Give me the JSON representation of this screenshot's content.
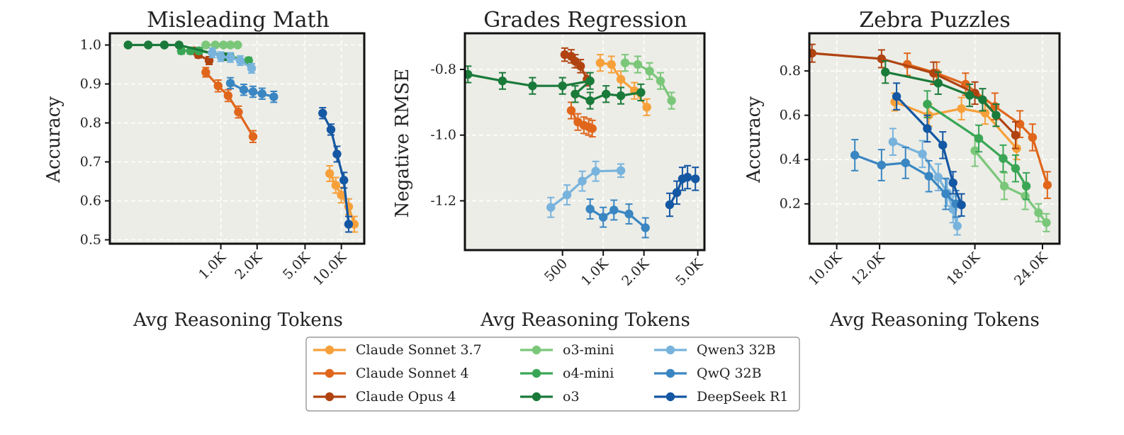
{
  "legend": [
    {
      "name": "Claude Sonnet 3.7",
      "color": "#f7a03a"
    },
    {
      "name": "Claude Sonnet 4",
      "color": "#e0661c"
    },
    {
      "name": "Claude Opus 4",
      "color": "#b04310"
    },
    {
      "name": "o3-mini",
      "color": "#7bc77a"
    },
    {
      "name": "o4-mini",
      "color": "#3aa655"
    },
    {
      "name": "o3",
      "color": "#1a7a3a"
    },
    {
      "name": "Qwen3 32B",
      "color": "#78b3dd"
    },
    {
      "name": "QwQ 32B",
      "color": "#3a86c2"
    },
    {
      "name": "DeepSeek R1",
      "color": "#1457a3"
    }
  ],
  "chart_data": [
    {
      "type": "line",
      "title": "Misleading Math",
      "xlabel": "Avg Reasoning Tokens",
      "ylabel": "Accuracy",
      "xscale": "log",
      "xlim": [
        120,
        15500
      ],
      "ylim": [
        0.49,
        1.03
      ],
      "xticks": [
        {
          "v": 1000,
          "l": "1.0K"
        },
        {
          "v": 2000,
          "l": "2.0K"
        },
        {
          "v": 5000,
          "l": "5.0K"
        },
        {
          "v": 10000,
          "l": "10.0K"
        }
      ],
      "yticks": [
        {
          "v": 0.5,
          "l": "0.5"
        },
        {
          "v": 0.6,
          "l": "0.6"
        },
        {
          "v": 0.7,
          "l": "0.7"
        },
        {
          "v": 0.8,
          "l": "0.8"
        },
        {
          "v": 0.9,
          "l": "0.9"
        },
        {
          "v": 1.0,
          "l": "1.0"
        }
      ],
      "grid": true,
      "series": [
        {
          "name": "Claude Sonnet 3.7",
          "points": [
            [
              8000,
              0.67,
              0.02
            ],
            [
              9000,
              0.64,
              0.02
            ],
            [
              10000,
              0.615,
              0.02
            ],
            [
              11500,
              0.585,
              0.02
            ],
            [
              12800,
              0.54,
              0.02
            ]
          ]
        },
        {
          "name": "Claude Sonnet 4",
          "points": [
            [
              750,
              0.93,
              0.012
            ],
            [
              950,
              0.895,
              0.015
            ],
            [
              1150,
              0.87,
              0.015
            ],
            [
              1400,
              0.828,
              0.015
            ],
            [
              1850,
              0.765,
              0.015
            ]
          ]
        },
        {
          "name": "Claude Opus 4",
          "points": [
            [
              600,
              0.985,
              0.008
            ],
            [
              650,
              0.975,
              0.008
            ],
            [
              800,
              0.96,
              0.01
            ]
          ]
        },
        {
          "name": "o3-mini",
          "points": [
            [
              750,
              1.0,
              0.004
            ],
            [
              900,
              1.0,
              0.004
            ],
            [
              1050,
              1.0,
              0.004
            ],
            [
              1200,
              1.0,
              0.004
            ],
            [
              1380,
              1.0,
              0.004
            ]
          ]
        },
        {
          "name": "o4-mini",
          "points": [
            [
              470,
              0.985,
              0.008
            ],
            [
              560,
              0.985,
              0.008
            ],
            [
              660,
              0.985,
              0.008
            ],
            [
              1200,
              0.97,
              0.008
            ],
            [
              1700,
              0.96,
              0.008
            ]
          ]
        },
        {
          "name": "o3",
          "points": [
            [
              170,
              1.0,
              0.004
            ],
            [
              250,
              1.0,
              0.004
            ],
            [
              340,
              1.0,
              0.004
            ],
            [
              450,
              1.0,
              0.004
            ],
            [
              1100,
              0.97,
              0.004
            ]
          ]
        },
        {
          "name": "Qwen3 32B",
          "points": [
            [
              850,
              0.98,
              0.012
            ],
            [
              1000,
              0.97,
              0.012
            ],
            [
              1200,
              0.968,
              0.012
            ],
            [
              1450,
              0.96,
              0.012
            ],
            [
              1800,
              0.94,
              0.012
            ]
          ]
        },
        {
          "name": "QwQ 32B",
          "points": [
            [
              1200,
              0.902,
              0.014
            ],
            [
              1550,
              0.885,
              0.014
            ],
            [
              1850,
              0.88,
              0.014
            ],
            [
              2200,
              0.875,
              0.014
            ],
            [
              2750,
              0.867,
              0.014
            ]
          ]
        },
        {
          "name": "DeepSeek R1",
          "points": [
            [
              7000,
              0.825,
              0.014
            ],
            [
              8200,
              0.783,
              0.014
            ],
            [
              9200,
              0.72,
              0.02
            ],
            [
              10500,
              0.653,
              0.02
            ],
            [
              11500,
              0.54,
              0.02
            ]
          ]
        }
      ]
    },
    {
      "type": "line",
      "title": "Grades Regression",
      "xlabel": "Avg Reasoning Tokens",
      "ylabel": "Negative RMSE",
      "xscale": "log",
      "xlim": [
        95,
        5600
      ],
      "ylim": [
        -1.35,
        -0.69
      ],
      "xticks": [
        {
          "v": 500,
          "l": "500"
        },
        {
          "v": 1000,
          "l": "1.0K"
        },
        {
          "v": 2000,
          "l": "2.0K"
        },
        {
          "v": 5000,
          "l": "5.0K"
        }
      ],
      "yticks": [
        {
          "v": -1.2,
          "l": "-1.2"
        },
        {
          "v": -1.0,
          "l": "-1.0"
        },
        {
          "v": -0.8,
          "l": "-0.8"
        }
      ],
      "grid": true,
      "series": [
        {
          "name": "Claude Sonnet 3.7",
          "points": [
            [
              950,
              -0.78,
              0.025
            ],
            [
              1150,
              -0.785,
              0.025
            ],
            [
              1350,
              -0.83,
              0.025
            ],
            [
              1700,
              -0.865,
              0.025
            ],
            [
              2100,
              -0.915,
              0.025
            ]
          ]
        },
        {
          "name": "Claude Sonnet 4",
          "points": [
            [
              580,
              -0.925,
              0.025
            ],
            [
              650,
              -0.96,
              0.025
            ],
            [
              720,
              -0.97,
              0.025
            ],
            [
              780,
              -0.975,
              0.025
            ],
            [
              830,
              -0.98,
              0.025
            ]
          ]
        },
        {
          "name": "Claude Opus 4",
          "points": [
            [
              520,
              -0.755,
              0.02
            ],
            [
              580,
              -0.76,
              0.02
            ],
            [
              620,
              -0.775,
              0.02
            ],
            [
              680,
              -0.79,
              0.02
            ],
            [
              760,
              -0.83,
              0.02
            ]
          ]
        },
        {
          "name": "o3-mini",
          "points": [
            [
              1450,
              -0.78,
              0.025
            ],
            [
              1800,
              -0.785,
              0.025
            ],
            [
              2200,
              -0.805,
              0.025
            ],
            [
              2650,
              -0.835,
              0.025
            ],
            [
              3200,
              -0.895,
              0.025
            ]
          ]
        },
        {
          "name": "o4-mini",
          "points": []
        },
        {
          "name": "o3",
          "points": [
            [
              100,
              -0.815,
              0.025
            ],
            [
              180,
              -0.835,
              0.025
            ],
            [
              300,
              -0.85,
              0.025
            ],
            [
              500,
              -0.85,
              0.025
            ],
            [
              800,
              -0.835,
              0.025
            ],
            [
              620,
              -0.875,
              0.025
            ],
            [
              800,
              -0.895,
              0.025
            ],
            [
              1050,
              -0.875,
              0.025
            ],
            [
              1350,
              -0.88,
              0.025
            ],
            [
              1900,
              -0.87,
              0.025
            ]
          ]
        },
        {
          "name": "Qwen3 32B",
          "points": [
            [
              410,
              -1.22,
              0.03
            ],
            [
              540,
              -1.182,
              0.03
            ],
            [
              700,
              -1.14,
              0.03
            ],
            [
              880,
              -1.11,
              0.03
            ],
            [
              1350,
              -1.108,
              0.02
            ]
          ]
        },
        {
          "name": "QwQ 32B",
          "points": [
            [
              800,
              -1.225,
              0.03
            ],
            [
              1000,
              -1.25,
              0.03
            ],
            [
              1200,
              -1.228,
              0.03
            ],
            [
              1550,
              -1.24,
              0.03
            ],
            [
              2050,
              -1.282,
              0.03
            ]
          ]
        },
        {
          "name": "DeepSeek R1",
          "points": [
            [
              3100,
              -1.212,
              0.035
            ],
            [
              3500,
              -1.175,
              0.035
            ],
            [
              3850,
              -1.133,
              0.035
            ],
            [
              4200,
              -1.128,
              0.035
            ],
            [
              4800,
              -1.133,
              0.035
            ]
          ]
        }
      ]
    },
    {
      "type": "line",
      "title": "Zebra Puzzles",
      "xlabel": "Avg Reasoning Tokens",
      "ylabel": "Accuracy",
      "xscale": "log",
      "xlim": [
        8900,
        25800
      ],
      "ylim": [
        0.02,
        0.97
      ],
      "xticks": [
        {
          "v": 10000,
          "l": "10.0K"
        },
        {
          "v": 12000,
          "l": "12.0K"
        },
        {
          "v": 18000,
          "l": "18.0K"
        },
        {
          "v": 24000,
          "l": "24.0K"
        }
      ],
      "yticks": [
        {
          "v": 0.2,
          "l": "0.2"
        },
        {
          "v": 0.4,
          "l": "0.4"
        },
        {
          "v": 0.6,
          "l": "0.6"
        },
        {
          "v": 0.8,
          "l": "0.8"
        }
      ],
      "grid": true,
      "series": [
        {
          "name": "Claude Sonnet 3.7",
          "points": [
            [
              12800,
              0.66,
              0.04
            ],
            [
              14800,
              0.6,
              0.05
            ],
            [
              17000,
              0.63,
              0.05
            ],
            [
              18800,
              0.61,
              0.05
            ],
            [
              21500,
              0.45,
              0.05
            ]
          ]
        },
        {
          "name": "Claude Sonnet 4",
          "points": [
            [
              13500,
              0.83,
              0.05
            ],
            [
              15300,
              0.79,
              0.05
            ],
            [
              17300,
              0.74,
              0.05
            ],
            [
              19600,
              0.64,
              0.06
            ],
            [
              21800,
              0.56,
              0.06
            ],
            [
              23000,
              0.5,
              0.06
            ],
            [
              24500,
              0.285,
              0.06
            ]
          ]
        },
        {
          "name": "Claude Opus 4",
          "points": [
            [
              9000,
              0.88,
              0.04
            ],
            [
              12100,
              0.855,
              0.04
            ],
            [
              15100,
              0.79,
              0.05
            ],
            [
              18000,
              0.7,
              0.05
            ],
            [
              21400,
              0.51,
              0.06
            ]
          ]
        },
        {
          "name": "o3-mini",
          "points": [
            [
              18000,
              0.44,
              0.07
            ],
            [
              20400,
              0.28,
              0.06
            ],
            [
              22300,
              0.235,
              0.06
            ],
            [
              23600,
              0.16,
              0.04
            ],
            [
              24400,
              0.115,
              0.04
            ]
          ]
        },
        {
          "name": "o4-mini",
          "points": [
            [
              14700,
              0.65,
              0.06
            ],
            [
              18300,
              0.495,
              0.06
            ],
            [
              20300,
              0.405,
              0.06
            ],
            [
              21400,
              0.36,
              0.06
            ],
            [
              22400,
              0.28,
              0.06
            ]
          ]
        },
        {
          "name": "o3",
          "points": [
            [
              12300,
              0.795,
              0.05
            ],
            [
              15400,
              0.745,
              0.05
            ],
            [
              17600,
              0.69,
              0.05
            ],
            [
              18600,
              0.67,
              0.05
            ],
            [
              19700,
              0.6,
              0.05
            ]
          ]
        },
        {
          "name": "Qwen3 32B",
          "points": [
            [
              12700,
              0.48,
              0.06
            ],
            [
              14400,
              0.425,
              0.06
            ],
            [
              15400,
              0.32,
              0.06
            ],
            [
              16000,
              0.25,
              0.06
            ],
            [
              16400,
              0.175,
              0.06
            ],
            [
              16700,
              0.1,
              0.04
            ]
          ]
        },
        {
          "name": "QwQ 32B",
          "points": [
            [
              10800,
              0.42,
              0.07
            ],
            [
              12100,
              0.375,
              0.07
            ],
            [
              13400,
              0.385,
              0.07
            ],
            [
              14800,
              0.325,
              0.07
            ],
            [
              15900,
              0.245,
              0.07
            ],
            [
              16600,
              0.2,
              0.06
            ]
          ]
        },
        {
          "name": "DeepSeek R1",
          "points": [
            [
              12900,
              0.685,
              0.06
            ],
            [
              14700,
              0.54,
              0.06
            ],
            [
              15700,
              0.465,
              0.06
            ],
            [
              16400,
              0.295,
              0.05
            ],
            [
              17000,
              0.195,
              0.05
            ]
          ]
        }
      ]
    }
  ]
}
